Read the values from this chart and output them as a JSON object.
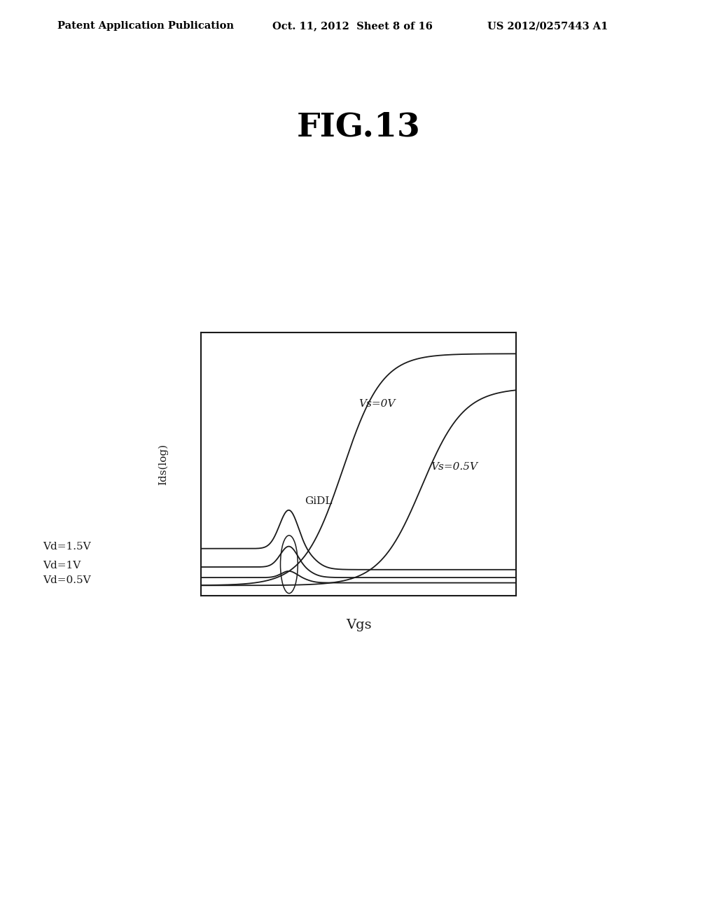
{
  "fig_title": "FIG.13",
  "header_left": "Patent Application Publication",
  "header_center": "Oct. 11, 2012  Sheet 8 of 16",
  "header_right": "US 2012/0257443 A1",
  "xlabel": "Vgs",
  "ylabel": "Ids(log)",
  "label_Vs0": "Vs=0V",
  "label_Vs05": "Vs=0.5V",
  "label_Vd15": "Vd=1.5V",
  "label_Vd1": "Vd=1V",
  "label_Vd05": "Vd=0.5V",
  "label_GiDL": "GiDL",
  "background_color": "#ffffff",
  "plot_bg": "#ffffff",
  "line_color": "#1a1a1a",
  "fig_title_fontsize": 34,
  "header_fontsize": 10.5,
  "annotation_fontsize": 11,
  "ylabel_fontsize": 11,
  "xlabel_fontsize": 14
}
